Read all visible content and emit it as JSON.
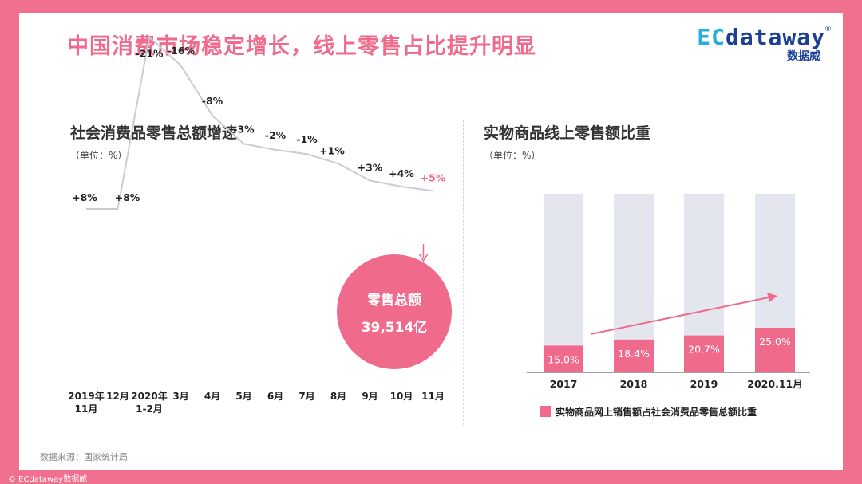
{
  "headline": "中国消费市场稳定增长，线上零售占比提升明显",
  "logo": {
    "ec": "EC",
    "rest": "dataway",
    "reg": "®",
    "cn": "数据威"
  },
  "source": "数据来源：国家统计局",
  "copyright": "© ECdataway数据威",
  "colors": {
    "pink": "#f06a8c",
    "line": "#c9ccd6",
    "track": "#e3e6ef"
  },
  "chart_data": [
    {
      "type": "line",
      "title": "社会消费品零售总额增速",
      "unit": "（单位：%）",
      "categories": [
        [
          "2019年",
          "11月"
        ],
        [
          "12月"
        ],
        [
          "2020年",
          "1-2月"
        ],
        [
          "3月"
        ],
        [
          "4月"
        ],
        [
          "5月"
        ],
        [
          "6月"
        ],
        [
          "7月"
        ],
        [
          "8月"
        ],
        [
          "9月"
        ],
        [
          "10月"
        ],
        [
          "11月"
        ]
      ],
      "values": [
        8,
        8,
        -20.5,
        -15.8,
        -7.5,
        -2.8,
        -1.8,
        -1.1,
        0.5,
        3.3,
        4.3,
        5.0
      ],
      "labels": [
        "+8%",
        "+8%",
        "-21%",
        "-16%",
        "-8%",
        "-3%",
        "-2%",
        "-1%",
        "+1%",
        "+3%",
        "+4%",
        "+5%"
      ],
      "highlight_index": 11,
      "callout": {
        "title": "零售总额",
        "value": "39,514亿"
      }
    },
    {
      "type": "bar",
      "title": "实物商品线上零售额比重",
      "unit": "（单位：%）",
      "categories": [
        "2017",
        "2018",
        "2019",
        "2020.11月"
      ],
      "values": [
        15.0,
        18.4,
        20.7,
        25.0
      ],
      "labels": [
        "15.0%",
        "18.4%",
        "20.7%",
        "25.0%"
      ],
      "ylim": [
        0,
        100
      ],
      "legend": "实物商品网上销售额占社会消费品零售总额比重",
      "legend_position": "bottom"
    }
  ]
}
